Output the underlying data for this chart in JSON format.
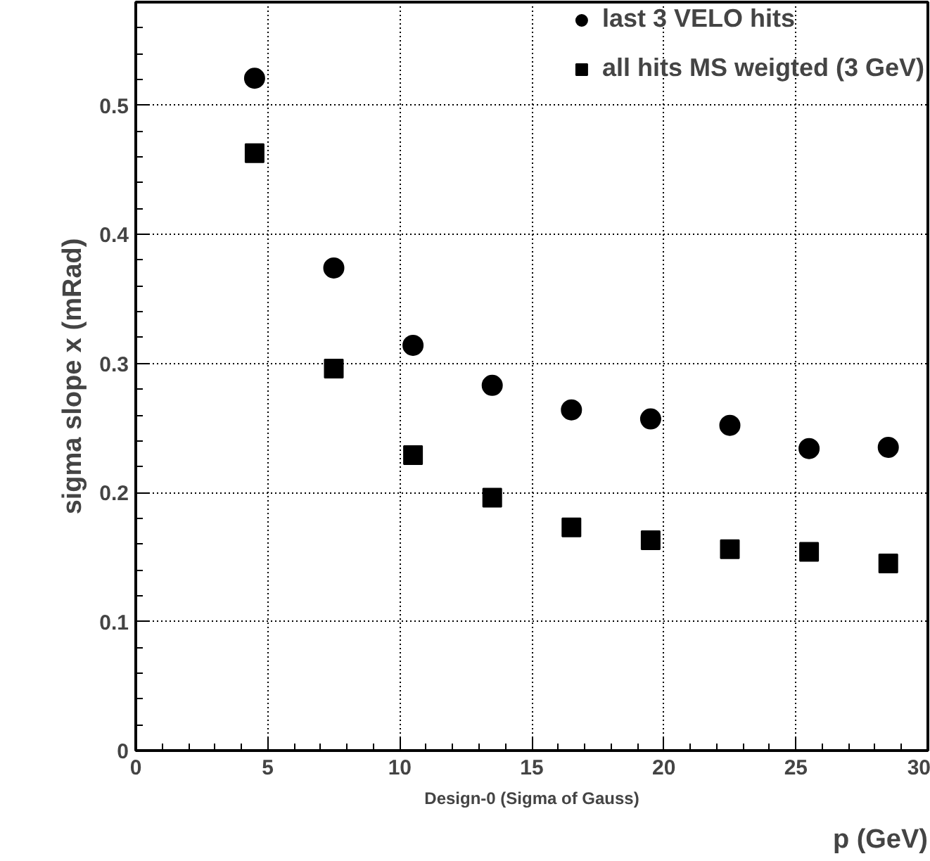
{
  "chart_data": {
    "type": "scatter",
    "xlabel": "p (GeV)",
    "ylabel": "sigma slope x (mRad)",
    "annotations": [
      "Design-0 (Sigma of Gauss)"
    ],
    "x": [
      4.5,
      7.5,
      10.5,
      13.5,
      16.5,
      19.5,
      22.5,
      25.5,
      28.5
    ],
    "series": [
      {
        "name": "last 3 VELO hits",
        "color": "#000000",
        "marker": "circle",
        "values": [
          0.521,
          0.374,
          0.314,
          0.283,
          0.264,
          0.257,
          0.252,
          0.234,
          0.235
        ]
      },
      {
        "name": "all hits MS weigted (3 GeV)",
        "color": "#000000",
        "marker": "square",
        "values": [
          0.463,
          0.296,
          0.229,
          0.196,
          0.173,
          0.163,
          0.156,
          0.154,
          0.145
        ]
      }
    ],
    "xlim": [
      0,
      30
    ],
    "ylim": [
      0,
      0.58
    ],
    "xticks": [
      0,
      5,
      10,
      15,
      20,
      25,
      30
    ],
    "yticks": [
      0,
      0.1,
      0.2,
      0.3,
      0.4,
      0.5
    ],
    "grid": true,
    "legend": "top right"
  }
}
